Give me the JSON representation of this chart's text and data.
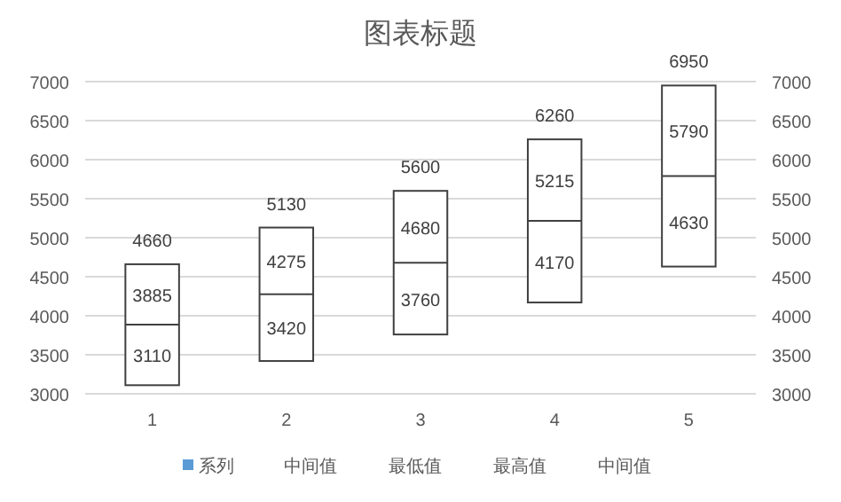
{
  "chart_data": {
    "type": "box",
    "title": "图表标题",
    "categories": [
      "1",
      "2",
      "3",
      "4",
      "5"
    ],
    "boxes": [
      {
        "low": 3110,
        "q1": 3110,
        "median": 3885,
        "q3": 4660,
        "high": 4660
      },
      {
        "low": 3420,
        "q1": 3420,
        "median": 4275,
        "q3": 5130,
        "high": 5130
      },
      {
        "low": 3760,
        "q1": 3760,
        "median": 4680,
        "q3": 5600,
        "high": 5600
      },
      {
        "low": 4170,
        "q1": 4170,
        "median": 5215,
        "q3": 6260,
        "high": 6260
      },
      {
        "low": 4630,
        "q1": 4630,
        "median": 5790,
        "q3": 6950,
        "high": 6950
      }
    ],
    "series": [
      {
        "name": "系列",
        "color": "#5b9bd5",
        "values": [
          null,
          null,
          null,
          null,
          null
        ]
      },
      {
        "name": "中间值",
        "values": [
          null,
          null,
          null,
          null,
          null
        ]
      },
      {
        "name": "最低值",
        "values": [
          null,
          null,
          null,
          null,
          null
        ]
      },
      {
        "name": "最高值",
        "values": [
          null,
          null,
          null,
          null,
          null
        ]
      },
      {
        "name": "中间值",
        "values": [
          null,
          null,
          null,
          null,
          null
        ]
      }
    ],
    "annotations": [
      {
        "text": "4660",
        "x": "1",
        "y": 4660
      },
      {
        "text": "3885",
        "x": "1",
        "y": 3885
      },
      {
        "text": "3110",
        "x": "1",
        "y": 3110
      },
      {
        "text": "5130",
        "x": "2",
        "y": 5130
      },
      {
        "text": "4275",
        "x": "2",
        "y": 4275
      },
      {
        "text": "3420",
        "x": "2",
        "y": 3420
      },
      {
        "text": "5600",
        "x": "3",
        "y": 5600
      },
      {
        "text": "4680",
        "x": "3",
        "y": 4680
      },
      {
        "text": "3760",
        "x": "3",
        "y": 3760
      },
      {
        "text": "6260",
        "x": "4",
        "y": 6260
      },
      {
        "text": "5215",
        "x": "4",
        "y": 5215
      },
      {
        "text": "4170",
        "x": "4",
        "y": 4170
      },
      {
        "text": "6950",
        "x": "5",
        "y": 6950
      },
      {
        "text": "5790",
        "x": "5",
        "y": 5790
      },
      {
        "text": "4630",
        "x": "5",
        "y": 4630
      }
    ],
    "ylim": [
      3000,
      7000
    ],
    "yticks": [
      3000,
      3500,
      4000,
      4500,
      5000,
      5500,
      6000,
      6500,
      7000
    ],
    "y2lim": [
      3000,
      7000
    ],
    "y2ticks": [
      3000,
      3500,
      4000,
      4500,
      5000,
      5500,
      6000,
      6500,
      7000
    ],
    "grid": "y",
    "legend": "bottom"
  }
}
